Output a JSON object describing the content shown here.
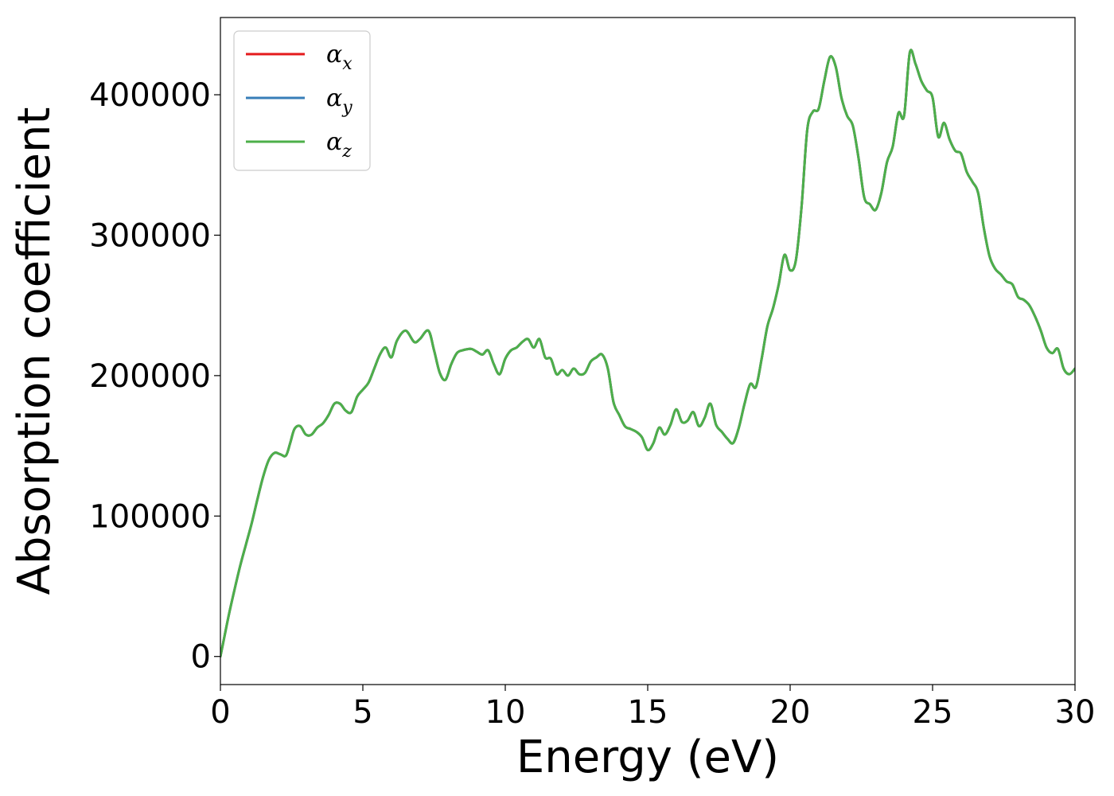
{
  "chart_data": {
    "type": "line",
    "xlabel": "Energy (eV)",
    "ylabel": "Absorption coefficient",
    "xlim": [
      0,
      30
    ],
    "ylim": [
      -20000,
      455000
    ],
    "x_ticks": [
      "0",
      "5",
      "10",
      "15",
      "20",
      "25",
      "30"
    ],
    "y_ticks": [
      "0",
      "100000",
      "200000",
      "300000",
      "400000"
    ],
    "x_tick_values": [
      0,
      5,
      10,
      15,
      20,
      25,
      30
    ],
    "y_tick_values": [
      0,
      100000,
      200000,
      300000,
      400000
    ],
    "grid": false,
    "legend_position": "top-left",
    "x": [
      0,
      0.1,
      0.3,
      0.5,
      0.7,
      0.9,
      1.1,
      1.3,
      1.5,
      1.7,
      1.9,
      2.1,
      2.3,
      2.45,
      2.6,
      2.8,
      3.0,
      3.2,
      3.4,
      3.6,
      3.8,
      4.0,
      4.2,
      4.4,
      4.6,
      4.8,
      5.0,
      5.2,
      5.4,
      5.6,
      5.8,
      6.0,
      6.2,
      6.5,
      6.8,
      7.0,
      7.3,
      7.5,
      7.7,
      7.9,
      8.1,
      8.3,
      8.5,
      8.8,
      9.0,
      9.2,
      9.4,
      9.6,
      9.8,
      10.0,
      10.2,
      10.4,
      10.6,
      10.8,
      11.0,
      11.2,
      11.4,
      11.6,
      11.8,
      12.0,
      12.2,
      12.4,
      12.6,
      12.8,
      13.0,
      13.2,
      13.4,
      13.6,
      13.8,
      14.0,
      14.2,
      14.4,
      14.6,
      14.8,
      15.0,
      15.2,
      15.4,
      15.6,
      15.8,
      16.0,
      16.2,
      16.4,
      16.6,
      16.8,
      17.0,
      17.2,
      17.4,
      17.6,
      17.8,
      18.0,
      18.2,
      18.4,
      18.6,
      18.8,
      19.0,
      19.2,
      19.4,
      19.6,
      19.8,
      20.0,
      20.2,
      20.4,
      20.6,
      20.8,
      21.0,
      21.2,
      21.4,
      21.6,
      21.8,
      22.0,
      22.2,
      22.4,
      22.6,
      22.8,
      23.0,
      23.2,
      23.4,
      23.6,
      23.8,
      24.0,
      24.2,
      24.4,
      24.6,
      24.8,
      25.0,
      25.2,
      25.4,
      25.6,
      25.8,
      26.0,
      26.2,
      26.4,
      26.6,
      26.8,
      27.0,
      27.2,
      27.4,
      27.6,
      27.8,
      28.0,
      28.2,
      28.4,
      28.6,
      28.8,
      29.0,
      29.2,
      29.4,
      29.6,
      29.8,
      30.0
    ],
    "series": [
      {
        "name": "αx",
        "color": "#e41a1c",
        "y": [
          0,
          10000,
          30000,
          48000,
          65000,
          80000,
          95000,
          112000,
          128000,
          140000,
          145000,
          144000,
          143000,
          152000,
          162000,
          164000,
          158000,
          158000,
          163000,
          166000,
          172000,
          180000,
          180000,
          175000,
          174000,
          185000,
          190000,
          195000,
          205000,
          215000,
          220000,
          213000,
          225000,
          232000,
          224000,
          226000,
          232000,
          218000,
          202000,
          197000,
          208000,
          216000,
          218000,
          219000,
          217000,
          215000,
          218000,
          208000,
          201000,
          212000,
          218000,
          220000,
          224000,
          226000,
          220000,
          226000,
          213000,
          212000,
          201000,
          204000,
          200000,
          205000,
          201000,
          202000,
          210000,
          213000,
          215000,
          205000,
          181000,
          172000,
          164000,
          162000,
          160000,
          156000,
          147000,
          152000,
          163000,
          158000,
          165000,
          176000,
          167000,
          168000,
          174000,
          164000,
          170000,
          180000,
          165000,
          160000,
          155000,
          152000,
          163000,
          180000,
          194000,
          192000,
          212000,
          235000,
          248000,
          265000,
          286000,
          275000,
          282000,
          320000,
          375000,
          388000,
          390000,
          410000,
          427000,
          420000,
          398000,
          385000,
          378000,
          355000,
          327000,
          322000,
          318000,
          330000,
          352000,
          363000,
          387000,
          385000,
          430000,
          422000,
          410000,
          403000,
          398000,
          370000,
          380000,
          368000,
          360000,
          358000,
          345000,
          338000,
          330000,
          305000,
          285000,
          276000,
          272000,
          267000,
          265000,
          256000,
          254000,
          250000,
          242000,
          232000,
          220000,
          216000,
          219000,
          205000,
          201000,
          205000
        ]
      },
      {
        "name": "αy",
        "color": "#377eb8",
        "y": [
          0,
          10000,
          30000,
          48000,
          65000,
          80000,
          95000,
          112000,
          128000,
          140000,
          145000,
          144000,
          143000,
          152000,
          162000,
          164000,
          158000,
          158000,
          163000,
          166000,
          172000,
          180000,
          180000,
          175000,
          174000,
          185000,
          190000,
          195000,
          205000,
          215000,
          220000,
          213000,
          225000,
          232000,
          224000,
          226000,
          232000,
          218000,
          202000,
          197000,
          208000,
          216000,
          218000,
          219000,
          217000,
          215000,
          218000,
          208000,
          201000,
          212000,
          218000,
          220000,
          224000,
          226000,
          220000,
          226000,
          213000,
          212000,
          201000,
          204000,
          200000,
          205000,
          201000,
          202000,
          210000,
          213000,
          215000,
          205000,
          181000,
          172000,
          164000,
          162000,
          160000,
          156000,
          147000,
          152000,
          163000,
          158000,
          165000,
          176000,
          167000,
          168000,
          174000,
          164000,
          170000,
          180000,
          165000,
          160000,
          155000,
          152000,
          163000,
          180000,
          194000,
          192000,
          212000,
          235000,
          248000,
          265000,
          286000,
          275000,
          282000,
          320000,
          375000,
          388000,
          390000,
          410000,
          427000,
          420000,
          398000,
          385000,
          378000,
          355000,
          327000,
          322000,
          318000,
          330000,
          352000,
          363000,
          387000,
          385000,
          430000,
          422000,
          410000,
          403000,
          398000,
          370000,
          380000,
          368000,
          360000,
          358000,
          345000,
          338000,
          330000,
          305000,
          285000,
          276000,
          272000,
          267000,
          265000,
          256000,
          254000,
          250000,
          242000,
          232000,
          220000,
          216000,
          219000,
          205000,
          201000,
          205000
        ]
      },
      {
        "name": "αz",
        "color": "#4daf4a",
        "y": [
          0,
          10000,
          30000,
          48000,
          65000,
          80000,
          95000,
          112000,
          128000,
          140000,
          145000,
          144000,
          143000,
          152000,
          162000,
          164000,
          158000,
          158000,
          163000,
          166000,
          172000,
          180000,
          180000,
          175000,
          174000,
          185000,
          190000,
          195000,
          205000,
          215000,
          220000,
          213000,
          225000,
          232000,
          224000,
          226000,
          232000,
          218000,
          202000,
          197000,
          208000,
          216000,
          218000,
          219000,
          217000,
          215000,
          218000,
          208000,
          201000,
          212000,
          218000,
          220000,
          224000,
          226000,
          220000,
          226000,
          213000,
          212000,
          201000,
          204000,
          200000,
          205000,
          201000,
          202000,
          210000,
          213000,
          215000,
          205000,
          181000,
          172000,
          164000,
          162000,
          160000,
          156000,
          147000,
          152000,
          163000,
          158000,
          165000,
          176000,
          167000,
          168000,
          174000,
          164000,
          170000,
          180000,
          165000,
          160000,
          155000,
          152000,
          163000,
          180000,
          194000,
          192000,
          212000,
          235000,
          248000,
          265000,
          286000,
          275000,
          282000,
          320000,
          375000,
          388000,
          390000,
          410000,
          427000,
          420000,
          398000,
          385000,
          378000,
          355000,
          327000,
          322000,
          318000,
          330000,
          352000,
          363000,
          387000,
          385000,
          430000,
          422000,
          410000,
          403000,
          398000,
          370000,
          380000,
          368000,
          360000,
          358000,
          345000,
          338000,
          330000,
          305000,
          285000,
          276000,
          272000,
          267000,
          265000,
          256000,
          254000,
          250000,
          242000,
          232000,
          220000,
          216000,
          219000,
          205000,
          201000,
          205000
        ]
      }
    ],
    "legend": [
      {
        "symbol": "α",
        "subscript": "x"
      },
      {
        "symbol": "α",
        "subscript": "y"
      },
      {
        "symbol": "α",
        "subscript": "z"
      }
    ]
  }
}
